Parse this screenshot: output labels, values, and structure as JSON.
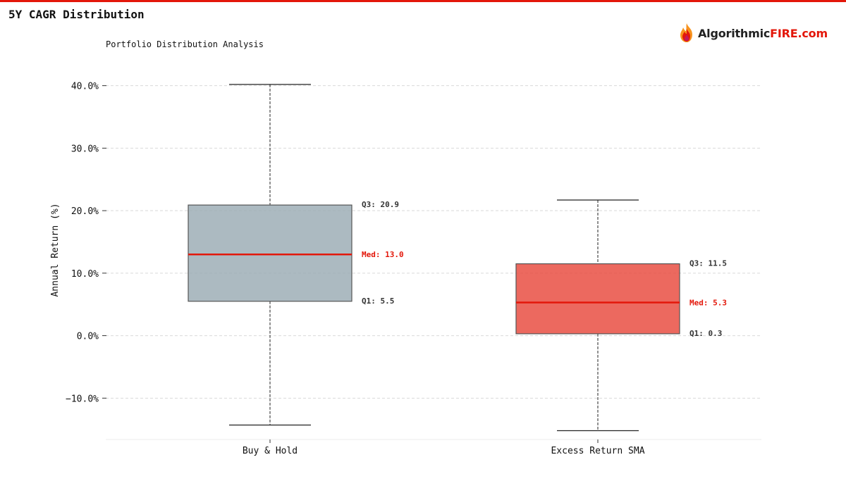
{
  "header": {
    "title": "5Y CAGR Distribution",
    "brand_prefix": "Algorithmic",
    "brand_accent": "FIRE.com"
  },
  "colors": {
    "accent": "#e3170a",
    "box_fill_1": "#9aabb3",
    "box_fill_2": "#e8483c",
    "median_line": "#e3170a",
    "grid": "#d9d9d9"
  },
  "chart_data": {
    "type": "box",
    "subtitle": "Portfolio Distribution Analysis",
    "ylabel": "Annual Return (%)",
    "xlabel": "",
    "ylim": [
      -16.5,
      43
    ],
    "yticks": [
      -10,
      0,
      10,
      20,
      30,
      40
    ],
    "ytick_labels": [
      "−10.0%",
      "0.0%",
      "10.0%",
      "20.0%",
      "30.0%",
      "40.0%"
    ],
    "grid": true,
    "categories": [
      "Buy & Hold",
      "Excess Return SMA"
    ],
    "series": [
      {
        "whisker_low": -14.3,
        "q1": 5.5,
        "median": 13.0,
        "q3": 20.9,
        "whisker_high": 40.2,
        "labels": {
          "q3": "Q3: 20.9",
          "median": "Med: 13.0",
          "q1": "Q1: 5.5"
        },
        "color": "#9aabb3"
      },
      {
        "whisker_low": -15.2,
        "q1": 0.3,
        "median": 5.3,
        "q3": 11.5,
        "whisker_high": 21.7,
        "labels": {
          "q3": "Q3: 11.5",
          "median": "Med: 5.3",
          "q1": "Q1: 0.3"
        },
        "color": "#e8483c"
      }
    ]
  }
}
